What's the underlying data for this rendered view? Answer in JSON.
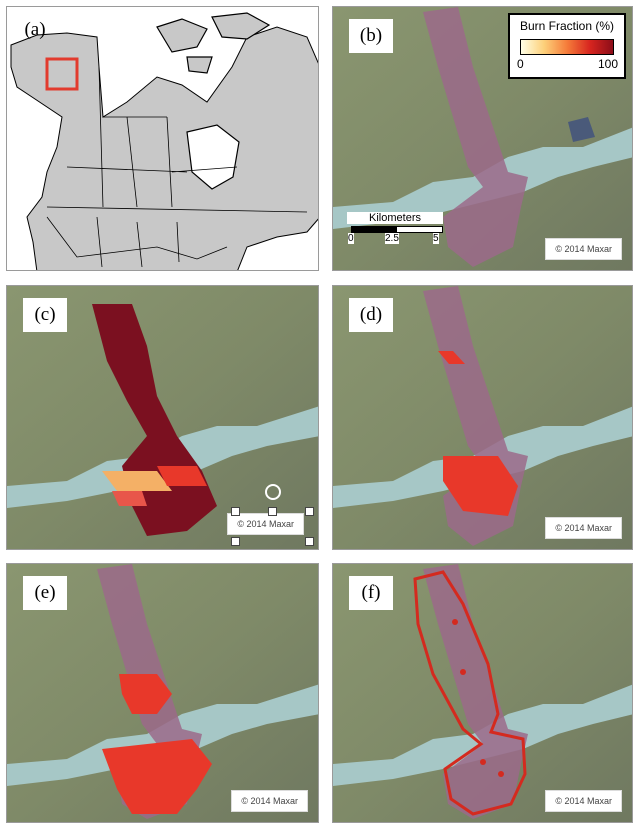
{
  "panels": {
    "a": {
      "label": "(a)"
    },
    "b": {
      "label": "(b)",
      "credit": "© 2014 Maxar"
    },
    "c": {
      "label": "(c)",
      "credit": "© 2014 Maxar"
    },
    "d": {
      "label": "(d)",
      "credit": "© 2014 Maxar"
    },
    "e": {
      "label": "(e)",
      "credit": "© 2014 Maxar"
    },
    "f": {
      "label": "(f)",
      "credit": "© 2014 Maxar"
    }
  },
  "legend": {
    "title": "Burn Fraction (%)",
    "min": "0",
    "max": "100"
  },
  "scalebar": {
    "title": "Kilometers",
    "ticks": [
      "0",
      "2.5",
      "5"
    ]
  },
  "colors": {
    "land": "#c8c8c8",
    "ocean": "#ffffff",
    "highlight": "#e23b2e",
    "burn_dark": "#7b1020",
    "burn_red": "#e8382a",
    "outline": "#d42a1f"
  },
  "icons": {
    "rotate_handle": "rotate-icon"
  }
}
